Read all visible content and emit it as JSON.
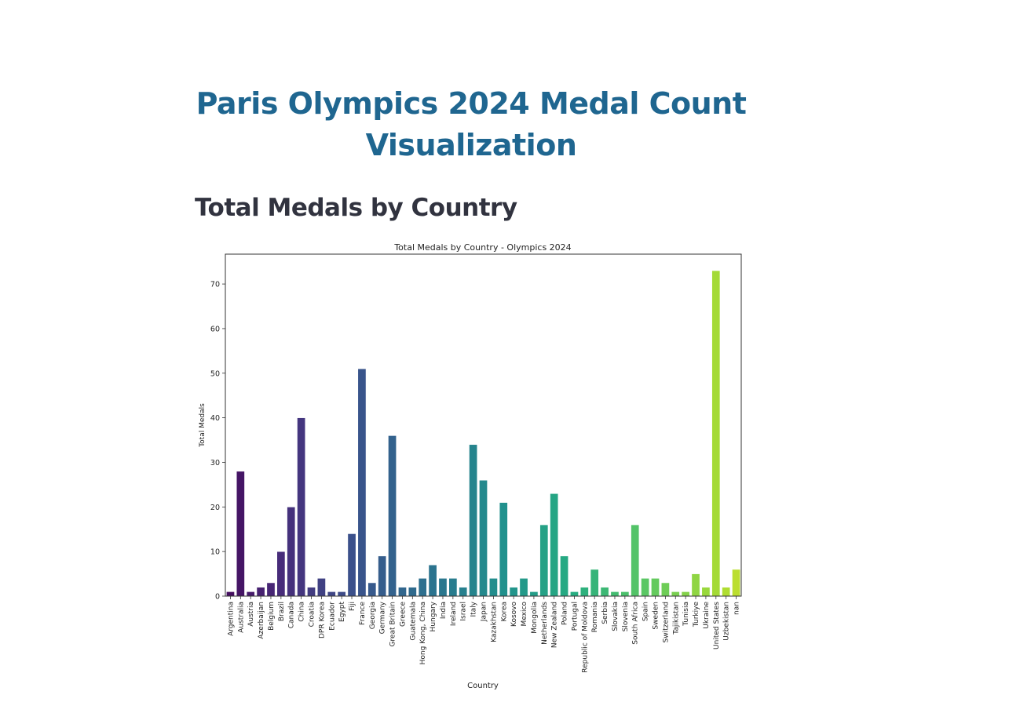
{
  "page": {
    "title": "Paris Olympics 2024 Medal Count Visualization",
    "section_title": "Total Medals by Country"
  },
  "chart_data": {
    "type": "bar",
    "title": "Total Medals by Country - Olympics 2024",
    "xlabel": "Country",
    "ylabel": "Total Medals",
    "ylim": [
      0,
      76.7
    ],
    "yticks": [
      0,
      10,
      20,
      30,
      40,
      50,
      60,
      70
    ],
    "grid": false,
    "colormap": "viridis",
    "categories": [
      "Argentina",
      "Australia",
      "Austria",
      "Azerbaijan",
      "Belgium",
      "Brazil",
      "Canada",
      "China",
      "Croatia",
      "DPR Korea",
      "Ecuador",
      "Egypt",
      "Fiji",
      "France",
      "Georgia",
      "Germany",
      "Great Britain",
      "Greece",
      "Guatemala",
      "Hong Kong, China",
      "Hungary",
      "India",
      "Ireland",
      "Israel",
      "Italy",
      "Japan",
      "Kazakhstan",
      "Korea",
      "Kosovo",
      "Mexico",
      "Mongolia",
      "Netherlands",
      "New Zealand",
      "Poland",
      "Portugal",
      "Republic of Moldova",
      "Romania",
      "Serbia",
      "Slovakia",
      "Slovenia",
      "South Africa",
      "Spain",
      "Sweden",
      "Switzerland",
      "Tajikistan",
      "Tunisia",
      "Turkiye",
      "Ukraine",
      "United States",
      "Uzbekistan",
      "nan"
    ],
    "values": [
      1,
      28,
      1,
      2,
      3,
      10,
      20,
      40,
      2,
      4,
      1,
      1,
      14,
      51,
      3,
      9,
      36,
      2,
      2,
      4,
      7,
      4,
      4,
      2,
      34,
      26,
      4,
      21,
      2,
      4,
      1,
      16,
      23,
      9,
      1,
      2,
      6,
      2,
      1,
      1,
      16,
      4,
      4,
      3,
      1,
      1,
      5,
      2,
      73,
      2,
      6
    ]
  }
}
